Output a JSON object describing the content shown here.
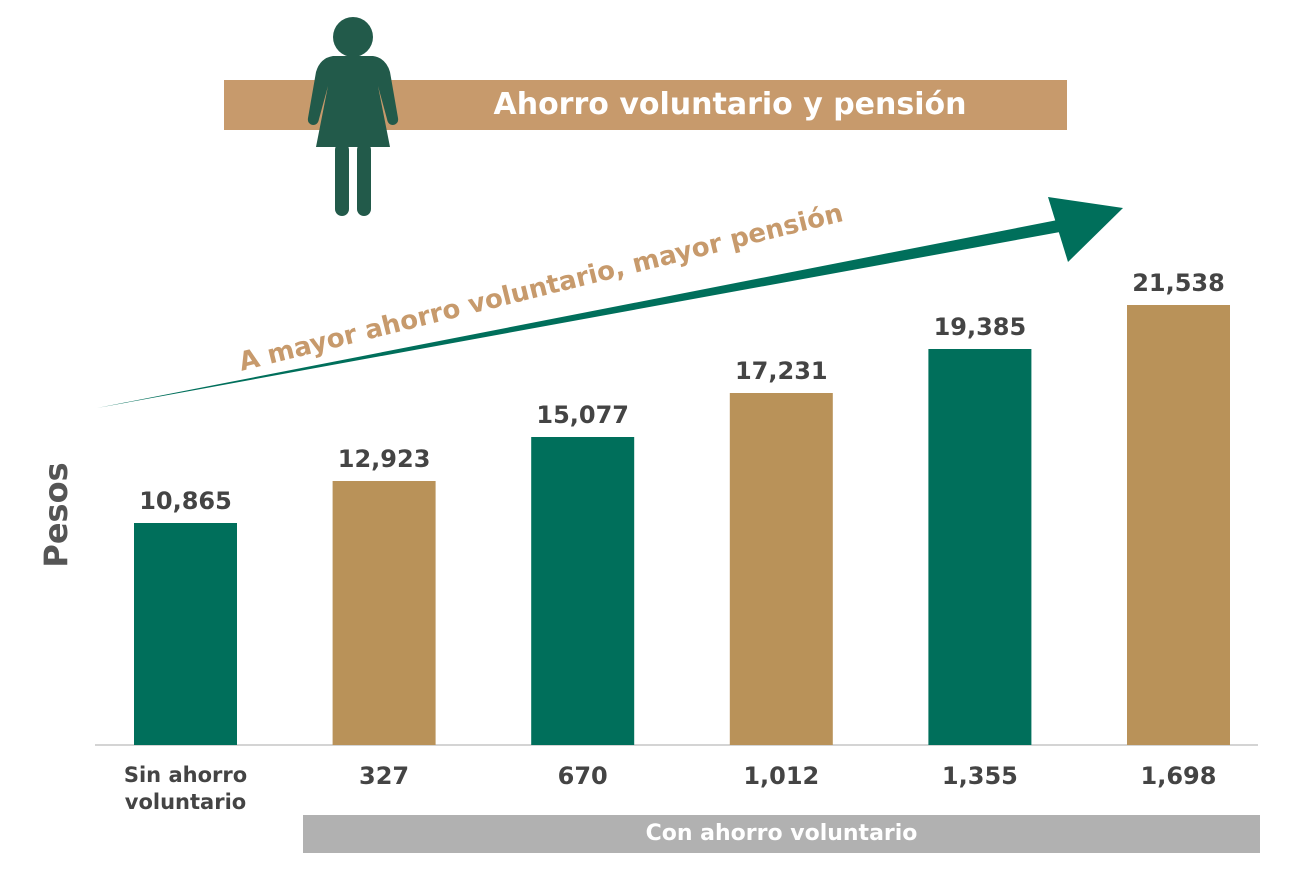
{
  "chart_data": {
    "type": "bar",
    "title": "Ahorro voluntario y pensión",
    "ylabel": "Pesos",
    "annotation": "A mayor ahorro voluntario, mayor pensión",
    "group_label": "Con ahorro voluntario",
    "categories": [
      "Sin ahorro voluntario",
      "327",
      "670",
      "1,012",
      "1,355",
      "1,698"
    ],
    "values": [
      10865,
      12923,
      15077,
      17231,
      19385,
      21538
    ],
    "value_labels": [
      "10,865",
      "12,923",
      "15,077",
      "17,231",
      "19,385",
      "21,538"
    ],
    "ylim": [
      0,
      25000
    ],
    "grid": false,
    "colors": [
      "#006f5b",
      "#b99259",
      "#006f5b",
      "#b99259",
      "#006f5b",
      "#b99259"
    ],
    "icon": "woman-icon",
    "icon_color": "#225a4a",
    "arrow_color": "#006f5b",
    "title_bar_color": "#c79a6c",
    "group_bar_color": "#b1b1b1"
  }
}
